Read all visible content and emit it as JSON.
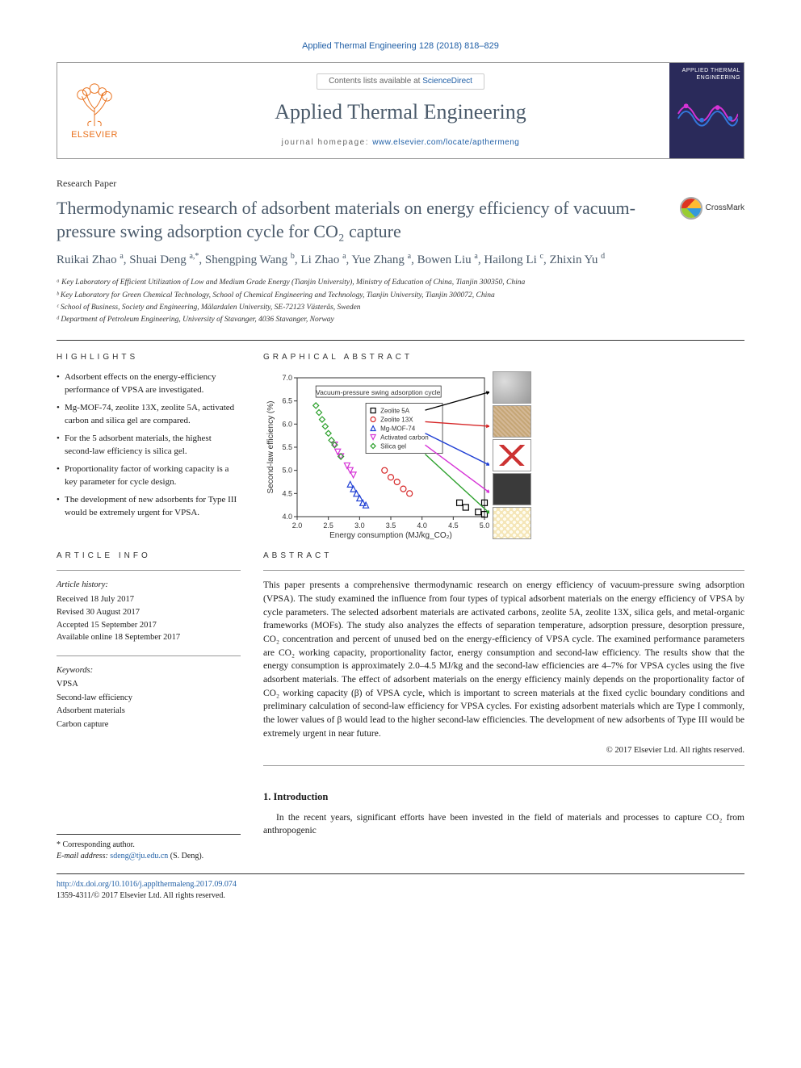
{
  "journal_ref": "Applied Thermal Engineering 128 (2018) 818–829",
  "masthead": {
    "elsevier_label": "ELSEVIER",
    "contents_prefix": "Contents lists available at ",
    "contents_link_text": "ScienceDirect",
    "journal_name": "Applied Thermal Engineering",
    "homepage_prefix": "journal homepage: ",
    "homepage_url": "www.elsevier.com/locate/apthermeng",
    "cover_title": "APPLIED THERMAL ENGINEERING"
  },
  "article_type": "Research Paper",
  "title": "Thermodynamic research of adsorbent materials on energy efficiency of vacuum-pressure swing adsorption cycle for CO₂ capture",
  "crossmark_label": "CrossMark",
  "authors_html": "Ruikai Zhao <sup>a</sup>, Shuai Deng <sup>a,*</sup>, Shengping Wang <sup>b</sup>, Li Zhao <sup>a</sup>, Yue Zhang <sup>a</sup>, Bowen Liu <sup>a</sup>, Hailong Li <sup>c</sup>, Zhixin Yu <sup>d</sup>",
  "affiliations": [
    "ᵃ Key Laboratory of Efficient Utilization of Low and Medium Grade Energy (Tianjin University), Ministry of Education of China, Tianjin 300350, China",
    "ᵇ Key Laboratory for Green Chemical Technology, School of Chemical Engineering and Technology, Tianjin University, Tianjin 300072, China",
    "ᶜ School of Business, Society and Engineering, Mälardalen University, SE-72123 Västerås, Sweden",
    "ᵈ Department of Petroleum Engineering, University of Stavanger, 4036 Stavanger, Norway"
  ],
  "highlights_heading": "HIGHLIGHTS",
  "highlights": [
    "Adsorbent effects on the energy-efficiency performance of VPSA are investigated.",
    "Mg-MOF-74, zeolite 13X, zeolite 5A, activated carbon and silica gel are compared.",
    "For the 5 adsorbent materials, the highest second-law efficiency is silica gel.",
    "Proportionality factor of working capacity is a key parameter for cycle design.",
    "The development of new adsorbents for Type III would be extremely urgent for VPSA."
  ],
  "graphical_heading": "GRAPHICAL ABSTRACT",
  "chart": {
    "type": "scatter",
    "title_label": "Vacuum-pressure swing adsorption cycle",
    "xlabel": "Energy consumption (MJ/kg_CO₂)",
    "ylabel": "Second-law efficiency (%)",
    "xlim": [
      2.0,
      5.0
    ],
    "xtick_step": 0.5,
    "ylim": [
      4.0,
      7.0
    ],
    "ytick_step": 0.5,
    "background_color": "#ffffff",
    "border_color": "#333333",
    "tick_color": "#333333",
    "tick_fontsize": 9,
    "label_fontsize": 10,
    "title_box_border": "#333333",
    "legend": {
      "border_color": "#333333",
      "fontsize": 8,
      "items": [
        {
          "label": "Zeolite 5A",
          "marker": "square",
          "color": "#000000"
        },
        {
          "label": "Zeolite 13X",
          "marker": "circle",
          "color": "#d62728"
        },
        {
          "label": "Mg-MOF-74",
          "marker": "triangle",
          "color": "#1f3fd4"
        },
        {
          "label": "Activated carbon",
          "marker": "inverted-triangle",
          "color": "#d633d6"
        },
        {
          "label": "Silica gel",
          "marker": "diamond",
          "color": "#2ca02c"
        }
      ]
    },
    "series": {
      "zeolite_5a": {
        "marker": "square",
        "color": "#000000",
        "points": [
          [
            4.6,
            4.3
          ],
          [
            4.7,
            4.2
          ],
          [
            4.9,
            4.1
          ],
          [
            5.0,
            4.05
          ],
          [
            5.0,
            4.3
          ]
        ]
      },
      "zeolite_13x": {
        "marker": "circle",
        "color": "#d62728",
        "points": [
          [
            3.4,
            5.0
          ],
          [
            3.5,
            4.85
          ],
          [
            3.6,
            4.75
          ],
          [
            3.7,
            4.6
          ],
          [
            3.8,
            4.5
          ]
        ]
      },
      "mg_mof_74": {
        "marker": "triangle",
        "color": "#1f3fd4",
        "points": [
          [
            2.85,
            4.7
          ],
          [
            2.9,
            4.6
          ],
          [
            2.95,
            4.5
          ],
          [
            3.0,
            4.4
          ],
          [
            3.05,
            4.3
          ],
          [
            3.1,
            4.25
          ]
        ]
      },
      "activated_carbon": {
        "marker": "inverted-triangle",
        "color": "#d633d6",
        "points": [
          [
            2.6,
            5.55
          ],
          [
            2.65,
            5.4
          ],
          [
            2.7,
            5.3
          ],
          [
            2.8,
            5.1
          ],
          [
            2.85,
            5.0
          ],
          [
            2.9,
            4.9
          ]
        ]
      },
      "silica_gel": {
        "marker": "diamond",
        "color": "#2ca02c",
        "points": [
          [
            2.3,
            6.4
          ],
          [
            2.35,
            6.25
          ],
          [
            2.4,
            6.1
          ],
          [
            2.45,
            5.95
          ],
          [
            2.5,
            5.8
          ],
          [
            2.55,
            5.65
          ],
          [
            2.6,
            5.55
          ],
          [
            2.7,
            5.3
          ]
        ]
      }
    },
    "arrows": [
      {
        "from": [
          4.05,
          6.3
        ],
        "to": [
          5.1,
          6.7
        ],
        "color": "#000000"
      },
      {
        "from": [
          4.05,
          6.05
        ],
        "to": [
          5.1,
          5.95
        ],
        "color": "#d62728"
      },
      {
        "from": [
          4.05,
          5.8
        ],
        "to": [
          5.1,
          5.1
        ],
        "color": "#1f3fd4"
      },
      {
        "from": [
          4.05,
          5.55
        ],
        "to": [
          5.1,
          4.5
        ],
        "color": "#d633d6"
      },
      {
        "from": [
          4.05,
          5.35
        ],
        "to": [
          5.1,
          4.05
        ],
        "color": "#2ca02c"
      }
    ]
  },
  "article_info_heading": "ARTICLE INFO",
  "history_label": "Article history:",
  "history": [
    "Received 18 July 2017",
    "Revised 30 August 2017",
    "Accepted 15 September 2017",
    "Available online 18 September 2017"
  ],
  "keywords_label": "Keywords:",
  "keywords": [
    "VPSA",
    "Second-law efficiency",
    "Adsorbent materials",
    "Carbon capture"
  ],
  "abstract_heading": "ABSTRACT",
  "abstract": "This paper presents a comprehensive thermodynamic research on energy efficiency of vacuum-pressure swing adsorption (VPSA). The study examined the influence from four types of typical adsorbent materials on the energy efficiency of VPSA by cycle parameters. The selected adsorbent materials are activated carbons, zeolite 5A, zeolite 13X, silica gels, and metal-organic frameworks (MOFs). The study also analyzes the effects of separation temperature, adsorption pressure, desorption pressure, CO₂ concentration and percent of unused bed on the energy-efficiency of VPSA cycle. The examined performance parameters are CO₂ working capacity, proportionality factor, energy consumption and second-law efficiency. The results show that the energy consumption is approximately 2.0–4.5 MJ/kg and the second-law efficiencies are 4–7% for VPSA cycles using the five adsorbent materials. The effect of adsorbent materials on the energy efficiency mainly depends on the proportionality factor of CO₂ working capacity (β) of VPSA cycle, which is important to screen materials at the fixed cyclic boundary conditions and preliminary calculation of second-law efficiency for VPSA cycles. For existing adsorbent materials which are Type I commonly, the lower values of β would lead to the higher second-law efficiencies. The development of new adsorbents of Type III would be extremely urgent in near future.",
  "copyright": "© 2017 Elsevier Ltd. All rights reserved.",
  "corresponding": {
    "star": "* Corresponding author.",
    "email_label": "E-mail address: ",
    "email": "sdeng@tju.edu.cn",
    "email_suffix": " (S. Deng)."
  },
  "intro_heading": "1. Introduction",
  "intro_text": "In the recent years, significant efforts have been invested in the field of materials and processes to capture CO₂ from anthropogenic",
  "footer": {
    "doi": "http://dx.doi.org/10.1016/j.applthermaleng.2017.09.074",
    "issn_line": "1359-4311/© 2017 Elsevier Ltd. All rights reserved."
  }
}
